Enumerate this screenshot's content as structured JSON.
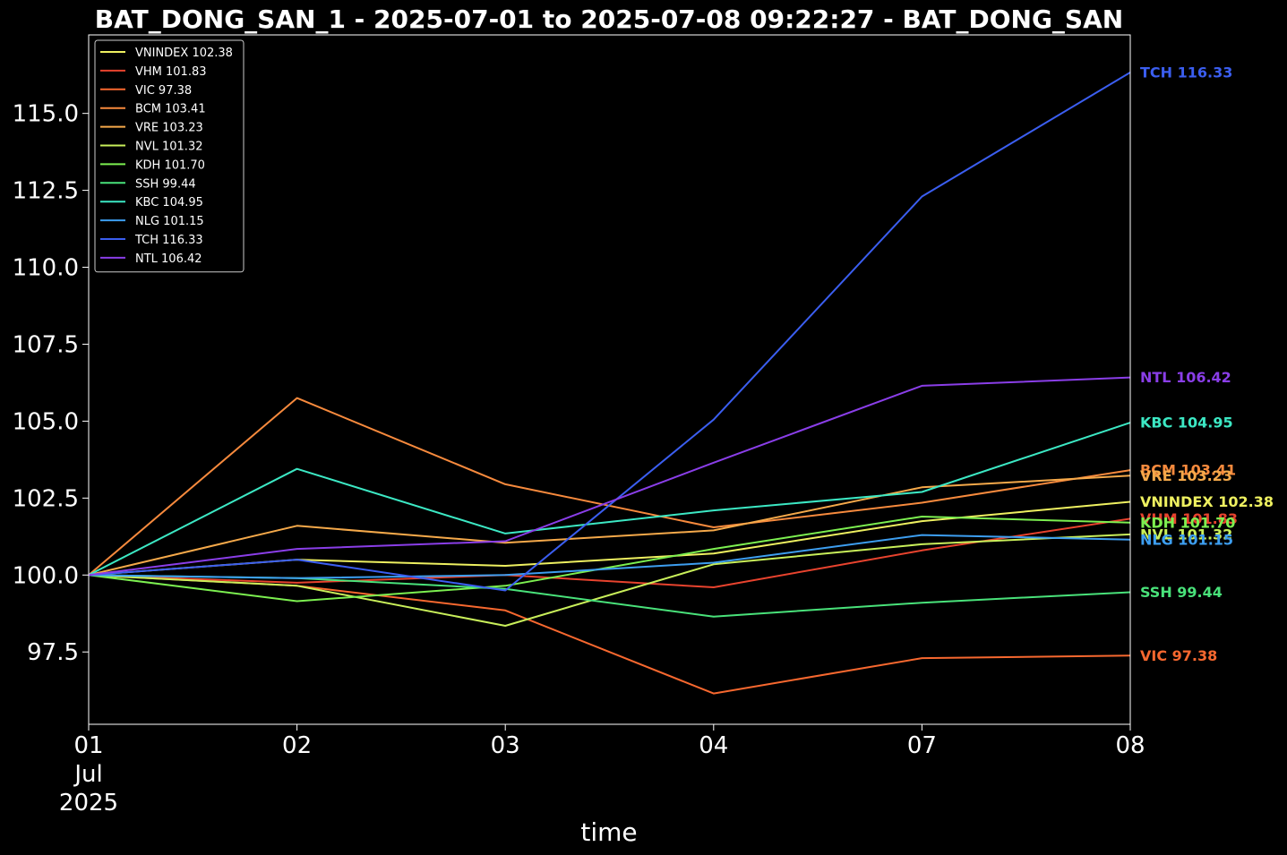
{
  "chart_data": {
    "type": "line",
    "title": "BAT_DONG_SAN_1 - 2025-07-01 to 2025-07-08 09:22:27 - BAT_DONG_SAN",
    "xlabel": "time",
    "ylabel": "",
    "x_tick_labels": [
      "01",
      "02",
      "03",
      "04",
      "07",
      "08"
    ],
    "x_tick_sublabels": [
      "Jul",
      "2025"
    ],
    "y_ticks": [
      97.5,
      100.0,
      102.5,
      105.0,
      107.5,
      110.0,
      112.5,
      115.0
    ],
    "y_tick_labels": [
      "97.5",
      "100.0",
      "102.5",
      "105.0",
      "107.5",
      "110.0",
      "112.5",
      "115.0"
    ],
    "ylim": [
      95.15,
      117.55
    ],
    "grid": false,
    "legend_position": "top-left",
    "series": [
      {
        "name": "VNINDEX",
        "legend": "VNINDEX 102.38",
        "end_label": "VNINDEX 102.38",
        "color": "#eef060",
        "values": [
          100.0,
          100.5,
          100.3,
          100.7,
          101.75,
          102.38
        ]
      },
      {
        "name": "VHM",
        "legend": "VHM 101.83",
        "end_label": "VHM 101.83",
        "color": "#e8432e",
        "values": [
          100.0,
          99.75,
          100.0,
          99.6,
          100.8,
          101.83
        ]
      },
      {
        "name": "VIC",
        "legend": "VIC 97.38",
        "end_label": "VIC 97.38",
        "color": "#f7682f",
        "values": [
          100.0,
          99.65,
          98.85,
          96.15,
          97.3,
          97.38
        ]
      },
      {
        "name": "BCM",
        "legend": "BCM 103.41",
        "end_label": "BCM 103.41",
        "color": "#f78a3d",
        "values": [
          100.0,
          105.75,
          102.95,
          101.55,
          102.35,
          103.41
        ]
      },
      {
        "name": "VRE",
        "legend": "VRE 103.23",
        "end_label": "VRE 103.23",
        "color": "#f5a94a",
        "values": [
          100.0,
          101.6,
          101.05,
          101.45,
          102.85,
          103.23
        ]
      },
      {
        "name": "NVL",
        "legend": "NVL 101.32",
        "end_label": "NVL 101.32",
        "color": "#c9ef5a",
        "values": [
          100.0,
          99.65,
          98.35,
          100.35,
          101.0,
          101.32
        ]
      },
      {
        "name": "KDH",
        "legend": "KDH 101.70",
        "end_label": "KDH 101.70",
        "color": "#7cef50",
        "values": [
          100.0,
          99.15,
          99.65,
          100.85,
          101.9,
          101.7
        ]
      },
      {
        "name": "SSH",
        "legend": "SSH 99.44",
        "end_label": "SSH 99.44",
        "color": "#49e27a",
        "values": [
          100.0,
          99.9,
          99.55,
          98.65,
          99.1,
          99.44
        ]
      },
      {
        "name": "KBC",
        "legend": "KBC 104.95",
        "end_label": "KBC 104.95",
        "color": "#3ce8c4",
        "values": [
          100.0,
          103.45,
          101.35,
          102.1,
          102.7,
          104.95
        ]
      },
      {
        "name": "NLG",
        "legend": "NLG 101.15",
        "end_label": "NLG 101.15",
        "color": "#3d9ef0",
        "values": [
          100.0,
          99.9,
          100.0,
          100.4,
          101.3,
          101.15
        ]
      },
      {
        "name": "TCH",
        "legend": "TCH 116.33",
        "end_label": "TCH 116.33",
        "color": "#3b5ef0",
        "values": [
          100.0,
          100.5,
          99.5,
          105.05,
          112.3,
          116.33
        ]
      },
      {
        "name": "NTL",
        "legend": "NTL 106.42",
        "end_label": "NTL 106.42",
        "color": "#8a3ee8",
        "values": [
          100.0,
          100.85,
          101.1,
          103.65,
          106.15,
          106.42
        ]
      }
    ]
  }
}
